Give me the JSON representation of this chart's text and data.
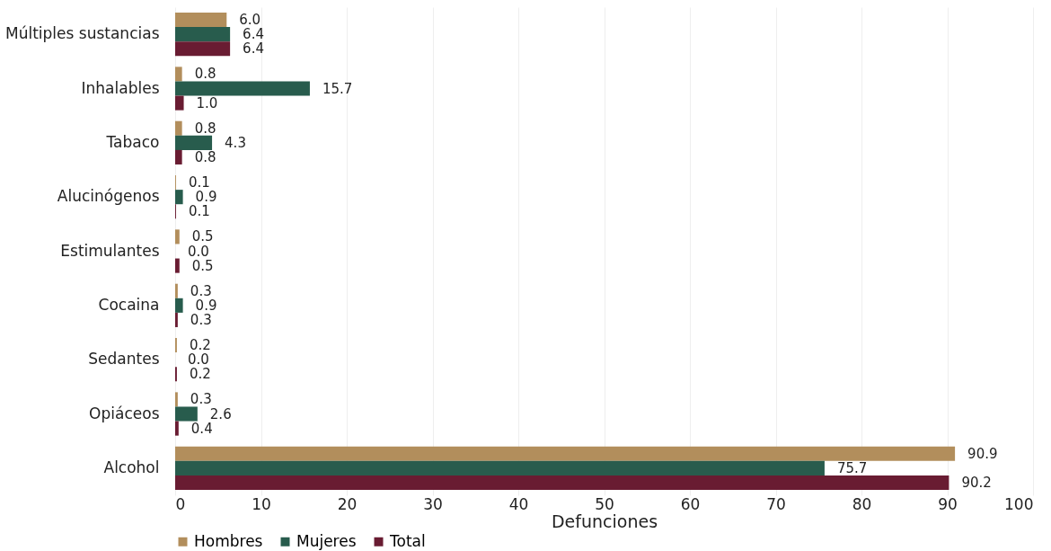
{
  "chart_data": {
    "type": "bar",
    "orientation": "horizontal",
    "xlabel": "Defunciones",
    "categories": [
      "Múltiples sustancias",
      "Inhalables",
      "Tabaco",
      "Alucinógenos",
      "Estimulantes",
      "Cocaina",
      "Sedantes",
      "Opiáceos",
      "Alcohol"
    ],
    "series": [
      {
        "name": "Hombres",
        "color": "#b28e5c",
        "values": [
          6.0,
          0.8,
          0.8,
          0.1,
          0.5,
          0.3,
          0.2,
          0.3,
          90.9
        ],
        "value_labels": [
          "6.0",
          "0.8",
          "0.8",
          "0.1",
          "0.5",
          "0.3",
          "0.2",
          "0.3",
          "90.9"
        ]
      },
      {
        "name": "Mujeres",
        "color": "#285c4d",
        "values": [
          6.4,
          15.7,
          4.3,
          0.9,
          0.0,
          0.9,
          0.0,
          2.6,
          75.7
        ],
        "value_labels": [
          "6.4",
          "15.7",
          "4.3",
          "0.9",
          "0.0",
          "0.9",
          "0.0",
          "2.6",
          "75.7"
        ]
      },
      {
        "name": "Total",
        "color": "#691c32",
        "values": [
          6.4,
          1.0,
          0.8,
          0.1,
          0.5,
          0.3,
          0.2,
          0.4,
          90.2
        ],
        "value_labels": [
          "6.4",
          "1.0",
          "0.8",
          "0.1",
          "0.5",
          "0.3",
          "0.2",
          "0.4",
          "90.2"
        ]
      }
    ],
    "xlim": [
      0,
      100
    ],
    "xticks": [
      0,
      10,
      20,
      30,
      40,
      50,
      60,
      70,
      80,
      90,
      100
    ],
    "grid": "x",
    "legend": "bottom"
  }
}
